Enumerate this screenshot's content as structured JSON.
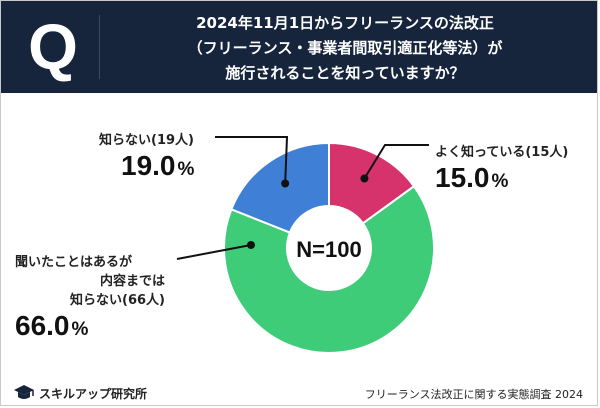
{
  "header": {
    "badge": "Q",
    "question_lines": [
      "2024年11月1日からフリーランスの法改正",
      "（フリーランス・事業者間取引適正化等法）が",
      "施行されることを知っていますか？"
    ]
  },
  "chart_data": {
    "type": "pie",
    "center_label": "N=100",
    "slices": [
      {
        "label": "よく知っている(15人)",
        "lines": [
          "よく知っている(15人)"
        ],
        "value": 15.0,
        "count": 15,
        "pct_text": "15.0",
        "color": "#d6336c"
      },
      {
        "label": "聞いたことはあるが内容までは知らない(66人)",
        "lines": [
          "聞いたことはあるが",
          "内容までは",
          "知らない(66人)"
        ],
        "value": 66.0,
        "count": 66,
        "pct_text": "66.0",
        "color": "#3ecc78"
      },
      {
        "label": "知らない(19人)",
        "lines": [
          "知らない(19人)"
        ],
        "value": 19.0,
        "count": 19,
        "pct_text": "19.0",
        "color": "#3f7fd6"
      }
    ],
    "percent_unit": "%"
  },
  "footer": {
    "brand": "スキルアップ研究所",
    "survey": "フリーランス法改正に関する実態調査 2024"
  }
}
